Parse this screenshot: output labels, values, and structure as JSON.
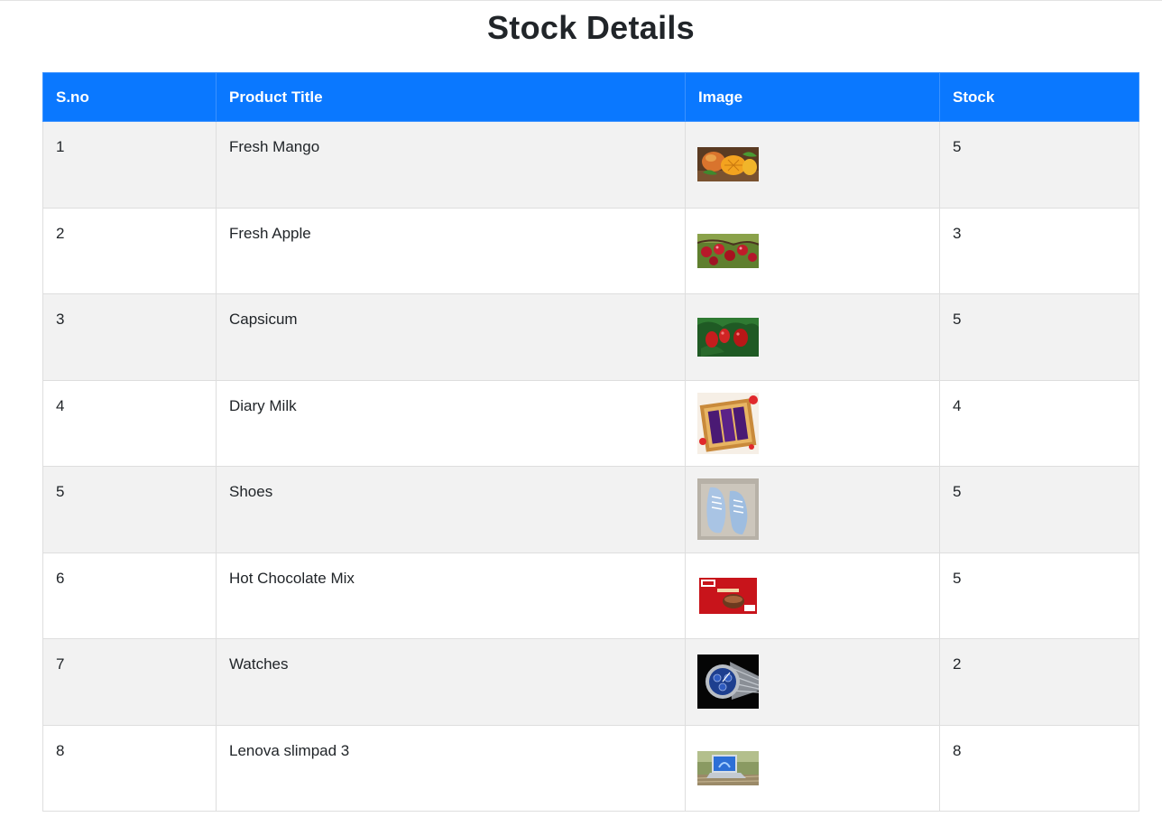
{
  "page": {
    "title": "Stock Details"
  },
  "table": {
    "headers": [
      "S.no",
      "Product Title",
      "Image",
      "Stock"
    ],
    "rows": [
      {
        "sno": "1",
        "title": "Fresh Mango",
        "image": "mango-photo",
        "stock": "5"
      },
      {
        "sno": "2",
        "title": "Fresh Apple",
        "image": "apple-photo",
        "stock": "3"
      },
      {
        "sno": "3",
        "title": "Capsicum",
        "image": "capsicum-photo",
        "stock": "5"
      },
      {
        "sno": "4",
        "title": "Diary Milk",
        "image": "chocolate-box-photo",
        "stock": "4"
      },
      {
        "sno": "5",
        "title": "Shoes",
        "image": "shoes-photo",
        "stock": "5"
      },
      {
        "sno": "6",
        "title": "Hot Chocolate Mix",
        "image": "hot-chocolate-box-photo",
        "stock": "5"
      },
      {
        "sno": "7",
        "title": "Watches",
        "image": "watch-photo",
        "stock": "2"
      },
      {
        "sno": "8",
        "title": "Lenova slimpad 3",
        "image": "laptop-photo",
        "stock": "8"
      }
    ]
  },
  "colors": {
    "header_bg": "#0a78ff",
    "header_text": "#ffffff",
    "row_stripe": "#f2f2f2",
    "border": "#dedede"
  }
}
